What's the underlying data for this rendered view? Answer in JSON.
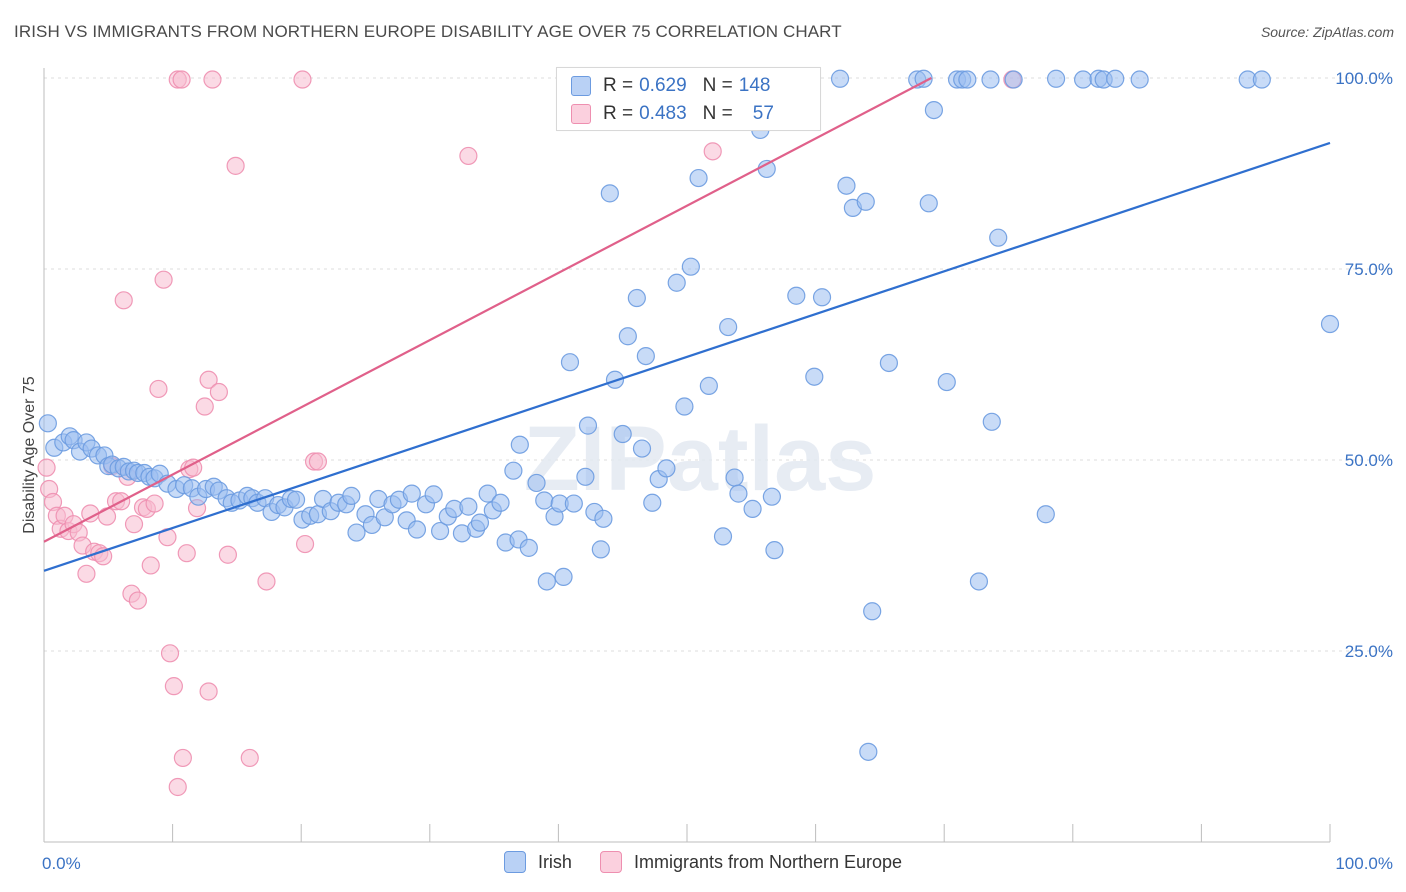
{
  "header": {
    "title": "IRISH VS IMMIGRANTS FROM NORTHERN EUROPE DISABILITY AGE OVER 75 CORRELATION CHART",
    "source": "Source: ZipAtlas.com"
  },
  "watermark": "ZIPatlas",
  "legend": {
    "r_label": "R = ",
    "n_label": "N = ",
    "rows": [
      {
        "r": "0.629",
        "n": "148",
        "color": "#9bbdf0",
        "border": "#6c9be0"
      },
      {
        "r": "0.483",
        "n": "57",
        "color": "#f7bcd0",
        "border": "#ee8fb0"
      }
    ]
  },
  "chart_data": {
    "type": "scatter",
    "title": "IRISH VS IMMIGRANTS FROM NORTHERN EUROPE DISABILITY AGE OVER 75 CORRELATION CHART",
    "xlabel": "",
    "ylabel": "Disability Age Over 75",
    "xlim": [
      0,
      100
    ],
    "ylim": [
      0,
      100
    ],
    "x_tick_labels": [
      "0.0%",
      "100.0%"
    ],
    "y_ticks": [
      25,
      50,
      75,
      100
    ],
    "y_tick_labels": [
      "25.0%",
      "50.0%",
      "75.0%",
      "100.0%"
    ],
    "grid": true,
    "series": [
      {
        "name": "Irish",
        "color": "#9bbdf0",
        "stroke": "#6c9be0",
        "line_color": "#2f6fcf",
        "trend": {
          "x": [
            0,
            100
          ],
          "y": [
            35.5,
            91.5
          ]
        },
        "points": [
          [
            0.3,
            54.8
          ],
          [
            0.8,
            51.6
          ],
          [
            1.5,
            52.3
          ],
          [
            2.0,
            53.1
          ],
          [
            2.3,
            52.6
          ],
          [
            2.8,
            51.1
          ],
          [
            3.3,
            52.3
          ],
          [
            3.7,
            51.5
          ],
          [
            4.2,
            50.6
          ],
          [
            4.7,
            50.6
          ],
          [
            5.0,
            49.2
          ],
          [
            5.3,
            49.4
          ],
          [
            5.8,
            48.9
          ],
          [
            6.2,
            49.1
          ],
          [
            6.6,
            48.5
          ],
          [
            7.0,
            48.6
          ],
          [
            7.3,
            48.3
          ],
          [
            7.8,
            48.3
          ],
          [
            8.2,
            47.8
          ],
          [
            8.6,
            47.6
          ],
          [
            9.0,
            48.2
          ],
          [
            9.6,
            46.9
          ],
          [
            10.3,
            46.2
          ],
          [
            10.9,
            46.7
          ],
          [
            11.5,
            46.3
          ],
          [
            12.0,
            45.2
          ],
          [
            12.6,
            46.2
          ],
          [
            13.2,
            46.5
          ],
          [
            13.6,
            46.0
          ],
          [
            14.2,
            45.0
          ],
          [
            14.6,
            44.4
          ],
          [
            15.2,
            44.7
          ],
          [
            15.8,
            45.3
          ],
          [
            16.2,
            45.0
          ],
          [
            16.6,
            44.4
          ],
          [
            17.2,
            45.0
          ],
          [
            17.7,
            43.2
          ],
          [
            18.2,
            44.1
          ],
          [
            18.7,
            43.8
          ],
          [
            19.2,
            44.9
          ],
          [
            19.6,
            44.8
          ],
          [
            20.1,
            42.2
          ],
          [
            20.7,
            42.7
          ],
          [
            21.3,
            42.9
          ],
          [
            21.7,
            44.9
          ],
          [
            22.3,
            43.3
          ],
          [
            22.9,
            44.4
          ],
          [
            23.5,
            44.2
          ],
          [
            23.9,
            45.3
          ],
          [
            24.3,
            40.5
          ],
          [
            25.0,
            42.9
          ],
          [
            25.5,
            41.5
          ],
          [
            26.0,
            44.9
          ],
          [
            26.5,
            42.5
          ],
          [
            27.1,
            44.2
          ],
          [
            27.6,
            44.8
          ],
          [
            28.2,
            42.1
          ],
          [
            28.6,
            45.6
          ],
          [
            29.0,
            40.9
          ],
          [
            29.7,
            44.2
          ],
          [
            30.3,
            45.5
          ],
          [
            30.8,
            40.7
          ],
          [
            31.4,
            42.6
          ],
          [
            31.9,
            43.6
          ],
          [
            32.5,
            40.4
          ],
          [
            33.0,
            43.9
          ],
          [
            33.6,
            41.0
          ],
          [
            33.9,
            41.8
          ],
          [
            34.5,
            45.6
          ],
          [
            34.9,
            43.4
          ],
          [
            35.5,
            44.4
          ],
          [
            35.9,
            39.2
          ],
          [
            36.5,
            48.6
          ],
          [
            36.9,
            39.6
          ],
          [
            37.0,
            52.0
          ],
          [
            37.7,
            38.5
          ],
          [
            38.3,
            47.0
          ],
          [
            38.9,
            44.7
          ],
          [
            39.1,
            34.1
          ],
          [
            39.7,
            42.6
          ],
          [
            40.1,
            44.3
          ],
          [
            40.4,
            34.7
          ],
          [
            40.9,
            62.8
          ],
          [
            41.2,
            44.3
          ],
          [
            42.1,
            47.8
          ],
          [
            42.3,
            54.5
          ],
          [
            42.8,
            43.2
          ],
          [
            43.3,
            38.3
          ],
          [
            43.5,
            42.3
          ],
          [
            44.0,
            84.9
          ],
          [
            44.4,
            60.5
          ],
          [
            45.0,
            53.4
          ],
          [
            45.4,
            66.2
          ],
          [
            46.1,
            71.2
          ],
          [
            46.5,
            51.5
          ],
          [
            46.8,
            63.6
          ],
          [
            47.3,
            44.4
          ],
          [
            47.8,
            47.5
          ],
          [
            48.4,
            48.9
          ],
          [
            49.2,
            73.2
          ],
          [
            49.8,
            57.0
          ],
          [
            50.3,
            75.3
          ],
          [
            50.9,
            86.9
          ],
          [
            51.7,
            59.7
          ],
          [
            52.2,
            99.9
          ],
          [
            52.8,
            40.0
          ],
          [
            53.2,
            67.4
          ],
          [
            53.7,
            47.7
          ],
          [
            54.0,
            45.6
          ],
          [
            54.5,
            99.8
          ],
          [
            55.1,
            43.6
          ],
          [
            55.7,
            93.2
          ],
          [
            56.2,
            88.1
          ],
          [
            56.6,
            45.2
          ],
          [
            56.8,
            38.2
          ],
          [
            58.5,
            71.5
          ],
          [
            59.5,
            99.8
          ],
          [
            59.9,
            60.9
          ],
          [
            60.5,
            71.3
          ],
          [
            61.9,
            99.9
          ],
          [
            62.4,
            85.9
          ],
          [
            62.9,
            83.0
          ],
          [
            63.9,
            83.8
          ],
          [
            64.1,
            11.8
          ],
          [
            64.4,
            30.2
          ],
          [
            65.7,
            62.7
          ],
          [
            67.9,
            99.8
          ],
          [
            68.4,
            99.9
          ],
          [
            68.8,
            83.6
          ],
          [
            69.2,
            95.8
          ],
          [
            70.2,
            60.2
          ],
          [
            71.0,
            99.8
          ],
          [
            71.4,
            99.8
          ],
          [
            71.8,
            99.8
          ],
          [
            72.7,
            34.1
          ],
          [
            73.6,
            99.8
          ],
          [
            73.7,
            55.0
          ],
          [
            74.2,
            79.1
          ],
          [
            75.4,
            99.8
          ],
          [
            77.9,
            42.9
          ],
          [
            78.7,
            99.9
          ],
          [
            80.8,
            99.8
          ],
          [
            82.0,
            99.9
          ],
          [
            82.4,
            99.8
          ],
          [
            83.3,
            99.9
          ],
          [
            85.2,
            99.8
          ],
          [
            93.6,
            99.8
          ],
          [
            94.7,
            99.8
          ],
          [
            100.0,
            67.8
          ]
        ]
      },
      {
        "name": "Immigrants from Northern Europe",
        "color": "#f7bcd0",
        "stroke": "#ee8fb0",
        "line_color": "#e0608a",
        "trend": {
          "x": [
            0,
            69.0
          ],
          "y": [
            39.3,
            100
          ]
        },
        "points": [
          [
            0.2,
            49.0
          ],
          [
            0.4,
            46.2
          ],
          [
            0.7,
            44.5
          ],
          [
            1.0,
            42.7
          ],
          [
            1.3,
            41.0
          ],
          [
            1.6,
            42.7
          ],
          [
            1.9,
            40.7
          ],
          [
            2.3,
            41.6
          ],
          [
            2.7,
            40.5
          ],
          [
            3.0,
            38.8
          ],
          [
            3.3,
            35.1
          ],
          [
            3.6,
            43.0
          ],
          [
            3.9,
            38.0
          ],
          [
            4.3,
            37.8
          ],
          [
            4.6,
            37.4
          ],
          [
            4.9,
            42.6
          ],
          [
            5.3,
            49.2
          ],
          [
            5.6,
            44.6
          ],
          [
            6.0,
            44.6
          ],
          [
            6.2,
            70.9
          ],
          [
            6.5,
            47.8
          ],
          [
            6.8,
            32.5
          ],
          [
            7.0,
            41.6
          ],
          [
            7.3,
            31.6
          ],
          [
            7.7,
            43.8
          ],
          [
            8.0,
            43.6
          ],
          [
            8.3,
            36.2
          ],
          [
            8.6,
            44.3
          ],
          [
            8.9,
            59.3
          ],
          [
            9.3,
            73.6
          ],
          [
            9.6,
            39.9
          ],
          [
            9.8,
            24.7
          ],
          [
            10.1,
            20.4
          ],
          [
            10.4,
            99.8
          ],
          [
            10.4,
            7.2
          ],
          [
            10.7,
            99.8
          ],
          [
            10.8,
            11.0
          ],
          [
            11.1,
            37.8
          ],
          [
            11.3,
            48.8
          ],
          [
            11.6,
            49.0
          ],
          [
            11.9,
            43.7
          ],
          [
            12.5,
            57.0
          ],
          [
            12.8,
            60.5
          ],
          [
            12.8,
            19.7
          ],
          [
            13.1,
            99.8
          ],
          [
            13.6,
            58.9
          ],
          [
            14.3,
            37.6
          ],
          [
            14.9,
            88.5
          ],
          [
            16.0,
            11.0
          ],
          [
            17.3,
            34.1
          ],
          [
            20.1,
            99.8
          ],
          [
            20.3,
            39.0
          ],
          [
            21.0,
            49.8
          ],
          [
            21.3,
            49.8
          ],
          [
            33.0,
            89.8
          ],
          [
            52.0,
            90.4
          ],
          [
            75.3,
            99.8
          ]
        ]
      }
    ]
  }
}
